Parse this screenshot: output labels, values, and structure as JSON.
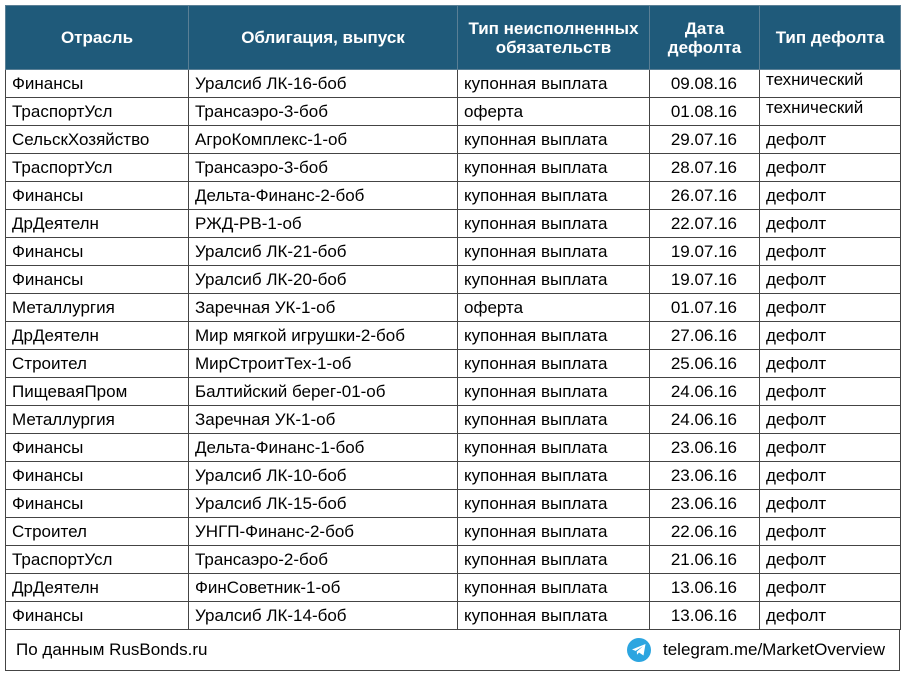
{
  "headers": [
    "Отрасль",
    "Облигация, выпуск",
    "Тип неисполненных обязательств",
    "Дата дефолта",
    "Тип дефолта"
  ],
  "rows": [
    [
      "Финансы",
      "Уралсиб ЛК-16-боб",
      "купонная выплата",
      "09.08.16",
      "технический"
    ],
    [
      "ТраспортУсл",
      "Трансаэро-3-боб",
      "оферта",
      "01.08.16",
      "технический"
    ],
    [
      "СельскХозяйство",
      "АгроКомплекс-1-об",
      "купонная выплата",
      "29.07.16",
      "дефолт"
    ],
    [
      "ТраспортУсл",
      "Трансаэро-3-боб",
      "купонная выплата",
      "28.07.16",
      "дефолт"
    ],
    [
      "Финансы",
      "Дельта-Финанс-2-боб",
      "купонная выплата",
      "26.07.16",
      "дефолт"
    ],
    [
      "ДрДеятелн",
      "РЖД-РВ-1-об",
      "купонная выплата",
      "22.07.16",
      "дефолт"
    ],
    [
      "Финансы",
      "Уралсиб ЛК-21-боб",
      "купонная выплата",
      "19.07.16",
      "дефолт"
    ],
    [
      "Финансы",
      "Уралсиб ЛК-20-боб",
      "купонная выплата",
      "19.07.16",
      "дефолт"
    ],
    [
      "Металлургия",
      "Заречная УК-1-об",
      "оферта",
      "01.07.16",
      "дефолт"
    ],
    [
      "ДрДеятелн",
      "Мир мягкой игрушки-2-боб",
      "купонная выплата",
      "27.06.16",
      "дефолт"
    ],
    [
      "Строител",
      "МирСтроитТех-1-об",
      "купонная выплата",
      "25.06.16",
      "дефолт"
    ],
    [
      "ПищеваяПром",
      "Балтийский берег-01-об",
      "купонная выплата",
      "24.06.16",
      "дефолт"
    ],
    [
      "Металлургия",
      "Заречная УК-1-об",
      "купонная выплата",
      "24.06.16",
      "дефолт"
    ],
    [
      "Финансы",
      "Дельта-Финанс-1-боб",
      "купонная выплата",
      "23.06.16",
      "дефолт"
    ],
    [
      "Финансы",
      "Уралсиб ЛК-10-боб",
      "купонная выплата",
      "23.06.16",
      "дефолт"
    ],
    [
      "Финансы",
      "Уралсиб ЛК-15-боб",
      "купонная выплата",
      "23.06.16",
      "дефолт"
    ],
    [
      "Строител",
      "УНГП-Финанс-2-боб",
      "купонная выплата",
      "22.06.16",
      "дефолт"
    ],
    [
      "ТраспортУсл",
      "Трансаэро-2-боб",
      "купонная выплата",
      "21.06.16",
      "дефолт"
    ],
    [
      "ДрДеятелн",
      "ФинСоветник-1-об",
      "купонная выплата",
      "13.06.16",
      "дефолт"
    ],
    [
      "Финансы",
      "Уралсиб ЛК-14-боб",
      "купонная выплата",
      "13.06.16",
      "дефолт"
    ]
  ],
  "footer": {
    "source": "По данным RusBonds.ru",
    "telegram_icon": "telegram-icon",
    "telegram_link": "telegram.me/MarketOverview"
  },
  "colors": {
    "header_bg": "#1f5a7a",
    "header_text": "#ffffff",
    "telegram": "#2ca5e0"
  }
}
